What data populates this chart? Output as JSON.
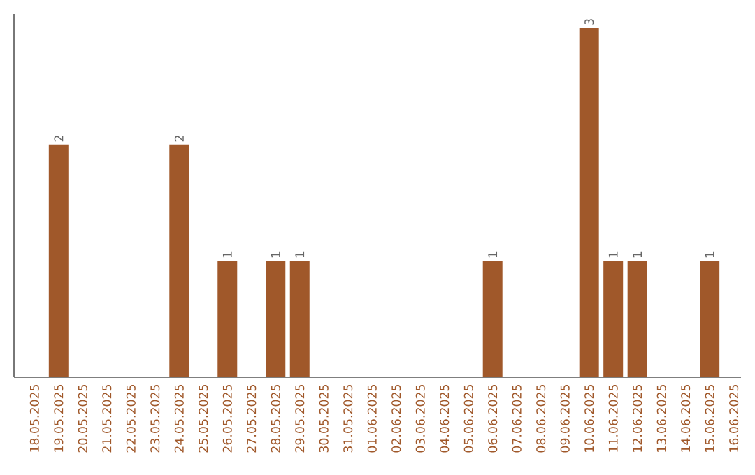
{
  "chart_data": {
    "type": "bar",
    "categories": [
      "18.05.2025",
      "19.05.2025",
      "20.05.2025",
      "21.05.2025",
      "22.05.2025",
      "23.05.2025",
      "24.05.2025",
      "25.05.2025",
      "26.05.2025",
      "27.05.2025",
      "28.05.2025",
      "29.05.2025",
      "30.05.2025",
      "31.05.2025",
      "01.06.2025",
      "02.06.2025",
      "03.06.2025",
      "04.06.2025",
      "05.06.2025",
      "06.06.2025",
      "07.06.2025",
      "08.06.2025",
      "09.06.2025",
      "10.06.2025",
      "11.06.2025",
      "12.06.2025",
      "13.06.2025",
      "14.06.2025",
      "15.06.2025",
      "16.06.2025"
    ],
    "values": [
      0,
      2,
      0,
      0,
      0,
      0,
      2,
      0,
      1,
      0,
      1,
      1,
      0,
      0,
      0,
      0,
      0,
      0,
      0,
      1,
      0,
      0,
      0,
      3,
      1,
      1,
      0,
      0,
      1,
      0
    ],
    "value_labels": [
      null,
      "2",
      null,
      null,
      null,
      null,
      "2",
      null,
      "1",
      null,
      "1",
      "1",
      null,
      null,
      null,
      null,
      null,
      null,
      null,
      "1",
      null,
      null,
      null,
      "3",
      "1",
      "1",
      null,
      null,
      "1",
      null
    ],
    "color": "#a0582a",
    "grid": false,
    "legend": false
  }
}
